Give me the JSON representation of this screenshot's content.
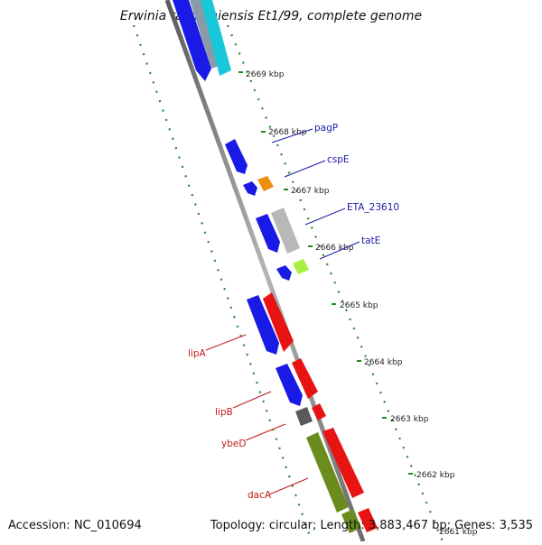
{
  "title": "Erwinia tasmaniensis Et1/99, complete genome",
  "accession_text": "Accession: NC_010694",
  "summary_text": "Topology: circular; Length: 3,883,467 bp; Genes: 3,535",
  "colors": {
    "backbone": "#8c8c8c",
    "tick": "#1f8c1f",
    "forward_label": "#1a1aa8",
    "reverse_label": "#c01a1a"
  },
  "ticks": [
    {
      "label": "2669 kbp"
    },
    {
      "label": "2668 kbp"
    },
    {
      "label": "2667 kbp"
    },
    {
      "label": "2666 kbp"
    },
    {
      "label": "2665 kbp"
    },
    {
      "label": "2664 kbp"
    },
    {
      "label": "2663 kbp"
    },
    {
      "label": "2662 kbp"
    },
    {
      "label": "2661 kbp"
    }
  ],
  "gene_labels": [
    {
      "text": "pagP",
      "strand": "forward"
    },
    {
      "text": "cspE",
      "strand": "forward"
    },
    {
      "text": "ETA_23610",
      "strand": "forward"
    },
    {
      "text": "tatE",
      "strand": "forward"
    },
    {
      "text": "lipA",
      "strand": "reverse"
    },
    {
      "text": "lipB",
      "strand": "reverse"
    },
    {
      "text": "ybeD",
      "strand": "reverse"
    },
    {
      "text": "dacA",
      "strand": "reverse"
    }
  ],
  "features": [
    {
      "name": "feature-top-cyan",
      "color": "#18c8d8"
    },
    {
      "name": "feature-top-blue",
      "color": "#1a1ae6"
    },
    {
      "name": "feature-top-gray",
      "color": "#8a9aa8"
    },
    {
      "name": "feature-blue-1",
      "color": "#1a1ae6"
    },
    {
      "name": "feature-blue-2",
      "color": "#1a1ae6"
    },
    {
      "name": "feature-cspE",
      "color": "#f08c10"
    },
    {
      "name": "feature-blue-3",
      "color": "#1a1ae6"
    },
    {
      "name": "feature-ETA_23610",
      "color": "#b8b8b8"
    },
    {
      "name": "feature-blue-4",
      "color": "#1a1ae6"
    },
    {
      "name": "feature-tatE",
      "color": "#a8f040"
    },
    {
      "name": "feature-blue-5",
      "color": "#1a1ae6"
    },
    {
      "name": "feature-red-lipA",
      "color": "#e81414"
    },
    {
      "name": "feature-blue-6",
      "color": "#1a1ae6"
    },
    {
      "name": "feature-red-lipB",
      "color": "#e81414"
    },
    {
      "name": "feature-ybeD",
      "color": "#5a5a5a"
    },
    {
      "name": "feature-red-2",
      "color": "#e81414"
    },
    {
      "name": "feature-olive-1",
      "color": "#6a8c1e"
    },
    {
      "name": "feature-red-dacA",
      "color": "#e81414"
    },
    {
      "name": "feature-olive-2",
      "color": "#6a8c1e"
    },
    {
      "name": "feature-red-3",
      "color": "#e81414"
    }
  ]
}
